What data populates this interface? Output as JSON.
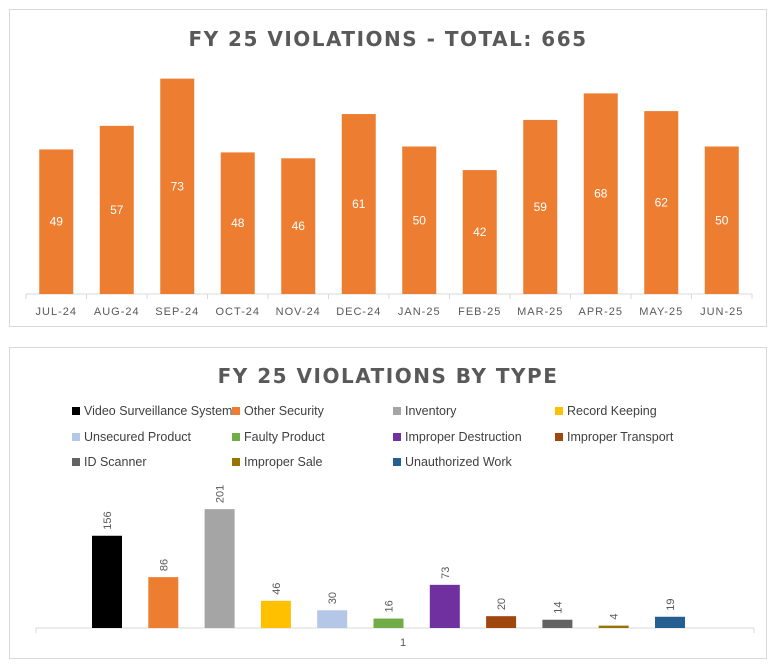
{
  "chart_data": [
    {
      "type": "bar",
      "title": "FY 25 VIOLATIONS - TOTAL: 665",
      "categories": [
        "JUL-24",
        "AUG-24",
        "SEP-24",
        "OCT-24",
        "NOV-24",
        "DEC-24",
        "JAN-25",
        "FEB-25",
        "MAR-25",
        "APR-25",
        "MAY-25",
        "JUN-25"
      ],
      "values": [
        49,
        57,
        73,
        48,
        46,
        61,
        50,
        42,
        59,
        68,
        62,
        50
      ],
      "ylim": [
        0,
        80
      ],
      "grid": false,
      "data_labels": "inside",
      "color": "#ED7D31"
    },
    {
      "type": "bar",
      "title": "FY 25 VIOLATIONS BY TYPE",
      "categories": [
        "1"
      ],
      "ylim": [
        0,
        230
      ],
      "grid": false,
      "legend_position": "top",
      "data_labels": "above-rotated",
      "series": [
        {
          "name": "Video Surveillance System",
          "values": [
            156
          ],
          "color": "#000000"
        },
        {
          "name": "Other Security",
          "values": [
            86
          ],
          "color": "#ED7D31"
        },
        {
          "name": "Inventory",
          "values": [
            201
          ],
          "color": "#A5A5A5"
        },
        {
          "name": "Record Keeping",
          "values": [
            46
          ],
          "color": "#FFC000"
        },
        {
          "name": "Unsecured Product",
          "values": [
            30
          ],
          "color": "#B4C7E7"
        },
        {
          "name": "Faulty Product",
          "values": [
            16
          ],
          "color": "#70AD47"
        },
        {
          "name": "Improper Destruction",
          "values": [
            73
          ],
          "color": "#7030A0"
        },
        {
          "name": "Improper Transport",
          "values": [
            20
          ],
          "color": "#9E480E"
        },
        {
          "name": "ID Scanner",
          "values": [
            14
          ],
          "color": "#636363"
        },
        {
          "name": "Improper Sale",
          "values": [
            4
          ],
          "color": "#997300"
        },
        {
          "name": "Unauthorized Work",
          "values": [
            19
          ],
          "color": "#255E91"
        }
      ]
    }
  ]
}
